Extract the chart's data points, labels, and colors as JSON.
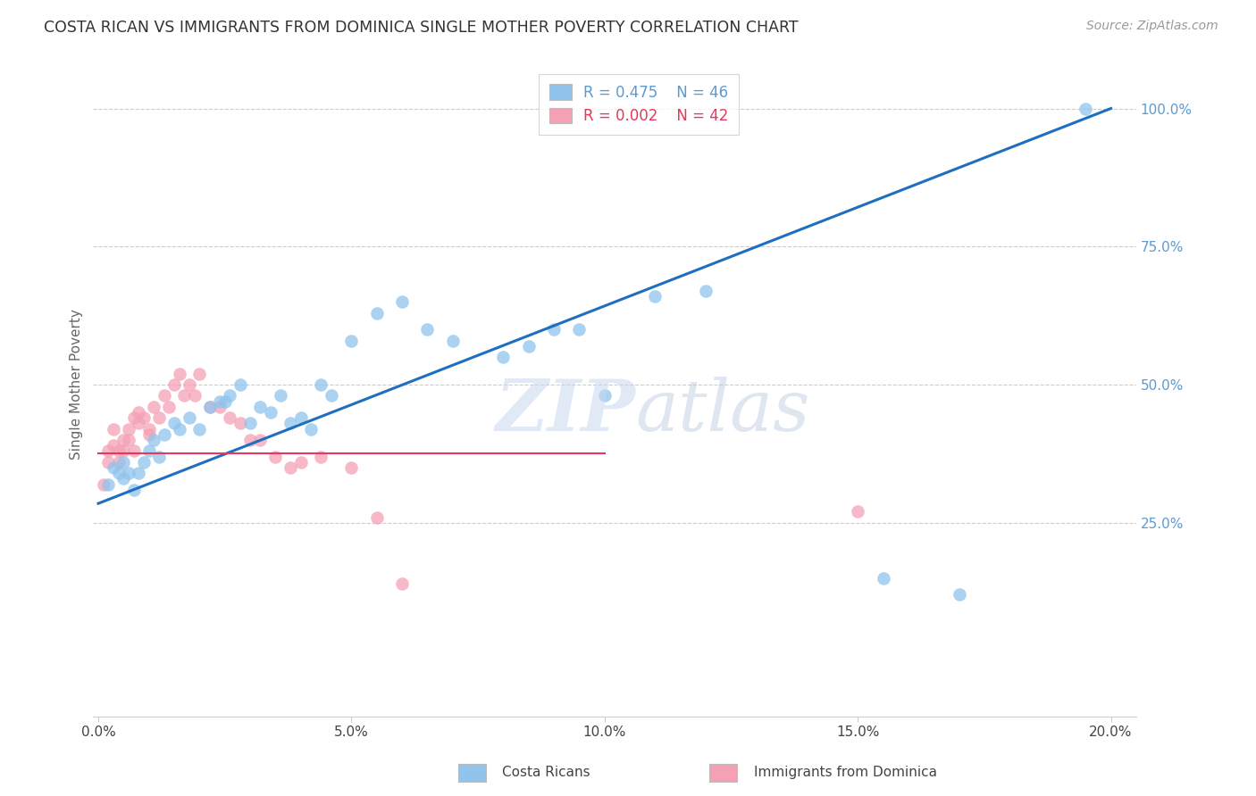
{
  "title": "COSTA RICAN VS IMMIGRANTS FROM DOMINICA SINGLE MOTHER POVERTY CORRELATION CHART",
  "source": "Source: ZipAtlas.com",
  "ylabel": "Single Mother Poverty",
  "watermark_zip": "ZIP",
  "watermark_atlas": "atlas",
  "legend_blue_r": "R = 0.475",
  "legend_blue_n": "N = 46",
  "legend_pink_r": "R = 0.002",
  "legend_pink_n": "N = 42",
  "legend_blue_label": "Costa Ricans",
  "legend_pink_label": "Immigrants from Dominica",
  "xlim": [
    -0.001,
    0.205
  ],
  "ylim": [
    -0.1,
    1.1
  ],
  "xticks": [
    0.0,
    0.05,
    0.1,
    0.15,
    0.2
  ],
  "yticks": [
    0.25,
    0.5,
    0.75,
    1.0
  ],
  "ytick_labels": [
    "25.0%",
    "50.0%",
    "75.0%",
    "100.0%"
  ],
  "xtick_labels": [
    "0.0%",
    "5.0%",
    "10.0%",
    "15.0%",
    "20.0%"
  ],
  "blue_color": "#90C4ED",
  "pink_color": "#F5A0B5",
  "trend_blue_color": "#1E6FBF",
  "trend_pink_color": "#E8365D",
  "blue_scatter_x": [
    0.002,
    0.003,
    0.004,
    0.005,
    0.005,
    0.006,
    0.007,
    0.008,
    0.009,
    0.01,
    0.011,
    0.012,
    0.013,
    0.015,
    0.016,
    0.018,
    0.02,
    0.022,
    0.024,
    0.025,
    0.026,
    0.028,
    0.03,
    0.032,
    0.034,
    0.036,
    0.038,
    0.04,
    0.042,
    0.044,
    0.046,
    0.05,
    0.055,
    0.06,
    0.065,
    0.07,
    0.08,
    0.085,
    0.09,
    0.095,
    0.1,
    0.11,
    0.12,
    0.155,
    0.17,
    0.195
  ],
  "blue_scatter_y": [
    0.32,
    0.35,
    0.34,
    0.36,
    0.33,
    0.34,
    0.31,
    0.34,
    0.36,
    0.38,
    0.4,
    0.37,
    0.41,
    0.43,
    0.42,
    0.44,
    0.42,
    0.46,
    0.47,
    0.47,
    0.48,
    0.5,
    0.43,
    0.46,
    0.45,
    0.48,
    0.43,
    0.44,
    0.42,
    0.5,
    0.48,
    0.58,
    0.63,
    0.65,
    0.6,
    0.58,
    0.55,
    0.57,
    0.6,
    0.6,
    0.48,
    0.66,
    0.67,
    0.15,
    0.12,
    1.0
  ],
  "pink_scatter_x": [
    0.001,
    0.002,
    0.002,
    0.003,
    0.003,
    0.004,
    0.004,
    0.005,
    0.005,
    0.006,
    0.006,
    0.007,
    0.007,
    0.008,
    0.008,
    0.009,
    0.01,
    0.01,
    0.011,
    0.012,
    0.013,
    0.014,
    0.015,
    0.016,
    0.017,
    0.018,
    0.019,
    0.02,
    0.022,
    0.024,
    0.026,
    0.028,
    0.03,
    0.032,
    0.035,
    0.038,
    0.04,
    0.044,
    0.05,
    0.055,
    0.06,
    0.15
  ],
  "pink_scatter_y": [
    0.32,
    0.36,
    0.38,
    0.42,
    0.39,
    0.38,
    0.36,
    0.4,
    0.38,
    0.42,
    0.4,
    0.44,
    0.38,
    0.45,
    0.43,
    0.44,
    0.41,
    0.42,
    0.46,
    0.44,
    0.48,
    0.46,
    0.5,
    0.52,
    0.48,
    0.5,
    0.48,
    0.52,
    0.46,
    0.46,
    0.44,
    0.43,
    0.4,
    0.4,
    0.37,
    0.35,
    0.36,
    0.37,
    0.35,
    0.26,
    0.14,
    0.27
  ],
  "blue_trend_x": [
    0.0,
    0.2
  ],
  "blue_trend_y": [
    0.285,
    1.0
  ],
  "pink_trend_x": [
    0.0,
    0.1
  ],
  "pink_trend_y": [
    0.375,
    0.375
  ],
  "background_color": "#FFFFFF",
  "grid_color": "#CCCCCC",
  "title_color": "#333333",
  "axis_label_color": "#666666",
  "right_tick_color": "#5B9BD5"
}
